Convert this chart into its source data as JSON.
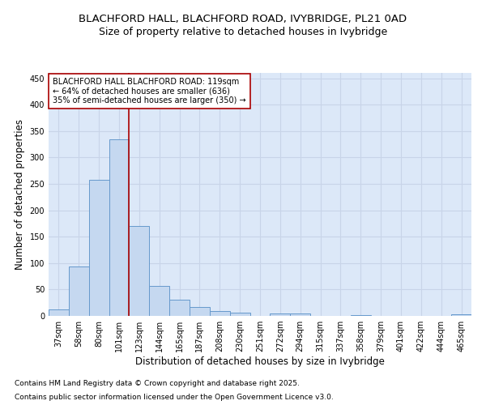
{
  "title_line1": "BLACHFORD HALL, BLACHFORD ROAD, IVYBRIDGE, PL21 0AD",
  "title_line2": "Size of property relative to detached houses in Ivybridge",
  "xlabel": "Distribution of detached houses by size in Ivybridge",
  "ylabel": "Number of detached properties",
  "categories": [
    "37sqm",
    "58sqm",
    "80sqm",
    "101sqm",
    "123sqm",
    "144sqm",
    "165sqm",
    "187sqm",
    "208sqm",
    "230sqm",
    "251sqm",
    "272sqm",
    "294sqm",
    "315sqm",
    "337sqm",
    "358sqm",
    "379sqm",
    "401sqm",
    "422sqm",
    "444sqm",
    "465sqm"
  ],
  "values": [
    13,
    93,
    257,
    335,
    170,
    57,
    30,
    17,
    9,
    6,
    0,
    5,
    5,
    0,
    0,
    2,
    0,
    0,
    0,
    0,
    3
  ],
  "bar_color": "#c5d8f0",
  "bar_edge_color": "#6699cc",
  "bar_edge_width": 0.7,
  "vline_x": 3.5,
  "vline_color": "#aa0000",
  "vline_label": "BLACHFORD HALL BLACHFORD ROAD: 119sqm",
  "annotation_line2": "← 64% of detached houses are smaller (636)",
  "annotation_line3": "35% of semi-detached houses are larger (350) →",
  "annotation_box_color": "#ffffff",
  "annotation_box_edge": "#aa0000",
  "grid_color": "#c8d4e8",
  "background_color": "#dce8f8",
  "ylim": [
    0,
    460
  ],
  "yticks": [
    0,
    50,
    100,
    150,
    200,
    250,
    300,
    350,
    400,
    450
  ],
  "footnote_line1": "Contains HM Land Registry data © Crown copyright and database right 2025.",
  "footnote_line2": "Contains public sector information licensed under the Open Government Licence v3.0.",
  "title_fontsize": 9.5,
  "subtitle_fontsize": 9.0,
  "axis_label_fontsize": 8.5,
  "tick_fontsize": 7,
  "annotation_fontsize": 7,
  "footnote_fontsize": 6.5
}
